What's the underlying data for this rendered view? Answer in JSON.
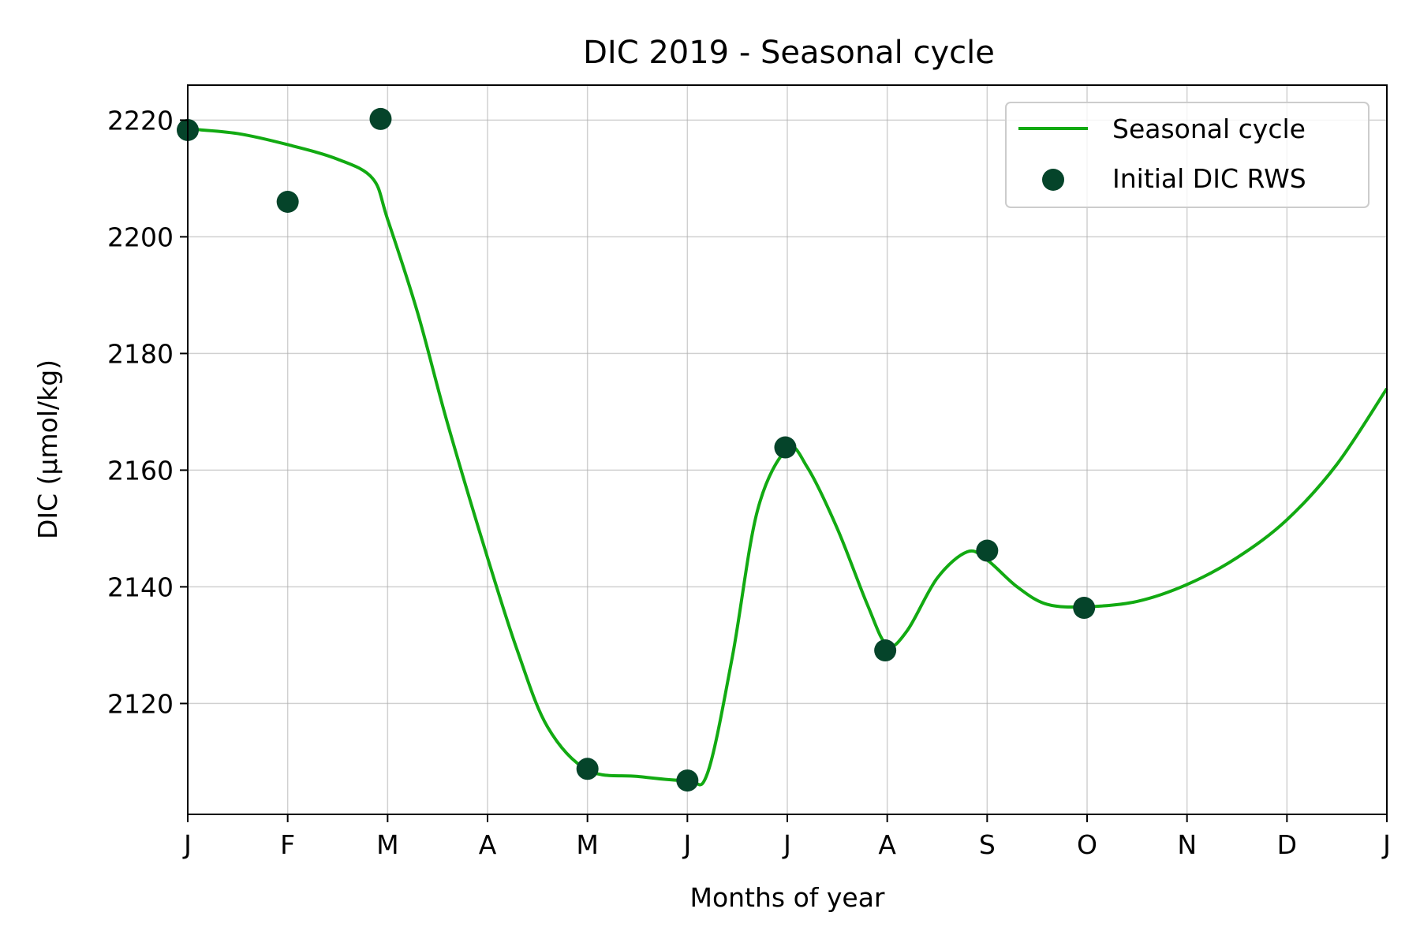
{
  "chart_data": {
    "type": "line",
    "title": "DIC 2019 - Seasonal cycle",
    "xlabel": "Months of year",
    "ylabel": "DIC (µmol/kg)",
    "x_tick_labels": [
      "J",
      "F",
      "M",
      "A",
      "M",
      "J",
      "J",
      "A",
      "S",
      "O",
      "N",
      "D",
      "J"
    ],
    "xlim": [
      1,
      13
    ],
    "ylim": [
      2101,
      2226
    ],
    "y_ticks": [
      2120,
      2140,
      2160,
      2180,
      2200,
      2220
    ],
    "grid": true,
    "legend_position": "top-right",
    "series": [
      {
        "name": "Seasonal cycle",
        "kind": "line",
        "color": "#12aa12",
        "x": [
          1.0,
          1.5,
          2.0,
          2.5,
          2.85,
          3.0,
          3.3,
          3.6,
          4.0,
          4.3,
          4.6,
          5.0,
          5.5,
          6.0,
          6.2,
          6.45,
          6.7,
          7.0,
          7.2,
          7.5,
          7.8,
          8.0,
          8.2,
          8.5,
          8.8,
          9.0,
          9.3,
          9.6,
          10.0,
          10.5,
          11.0,
          11.5,
          12.0,
          12.5,
          13.0
        ],
        "y": [
          2218.5,
          2217.7,
          2215.8,
          2213.3,
          2210.0,
          2203.0,
          2187.0,
          2168.0,
          2145.0,
          2129.0,
          2116.0,
          2108.6,
          2107.5,
          2106.8,
          2108.0,
          2128.0,
          2153.0,
          2163.6,
          2160.5,
          2150.0,
          2137.0,
          2130.0,
          2132.5,
          2141.5,
          2146.0,
          2144.6,
          2140.0,
          2137.0,
          2136.6,
          2137.5,
          2140.4,
          2145.0,
          2151.5,
          2161.0,
          2174.0
        ]
      },
      {
        "name": "Initial DIC RWS",
        "kind": "scatter",
        "color": "#05442a",
        "x": [
          1.0,
          2.0,
          2.93,
          5.0,
          6.0,
          6.98,
          7.98,
          9.0,
          9.97
        ],
        "y": [
          2218.3,
          2206.0,
          2220.2,
          2108.8,
          2106.8,
          2163.9,
          2129.1,
          2146.2,
          2136.4
        ]
      }
    ]
  }
}
